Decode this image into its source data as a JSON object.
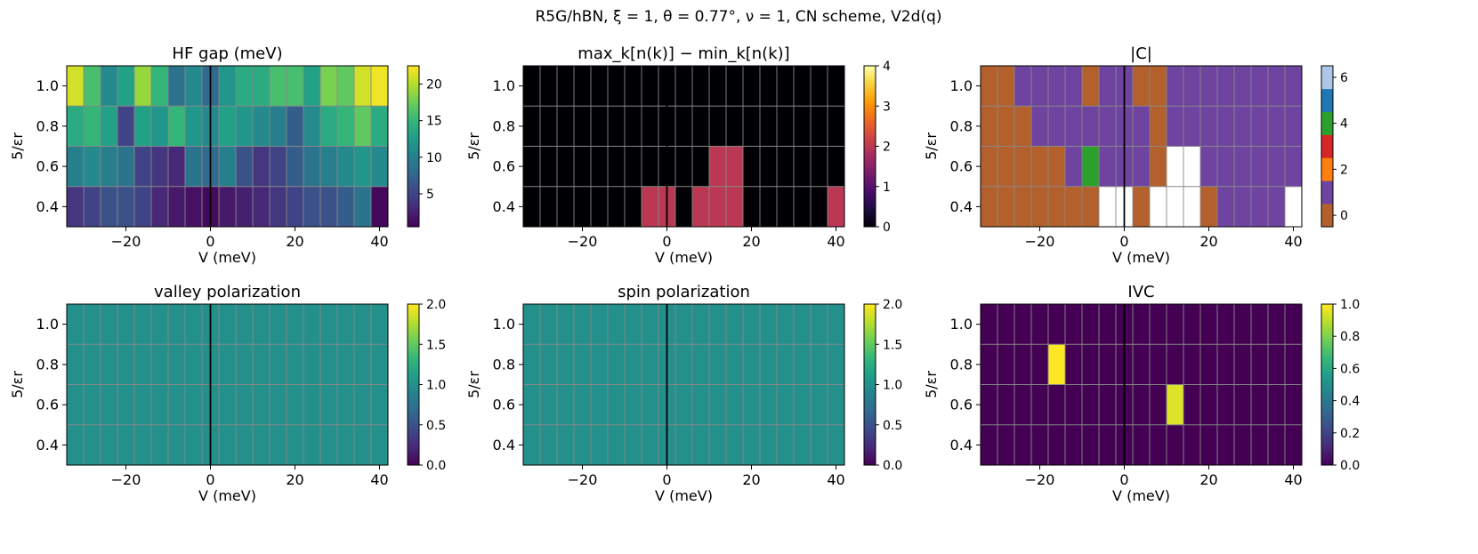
{
  "figure": {
    "suptitle": "R5G/hBN,  ξ = 1,  θ = 0.77°,  ν = 1,  CN scheme,  V2d(q)"
  },
  "chart_data": [
    {
      "type": "heatmap",
      "title": "HF gap (meV)",
      "xlabel": "V (meV)",
      "ylabel": "5/εr",
      "x": [
        -32,
        -28,
        -24,
        -20,
        -16,
        -12,
        -8,
        -4,
        0,
        4,
        8,
        12,
        16,
        20,
        24,
        28,
        32,
        36,
        40
      ],
      "y": [
        0.4,
        0.6,
        0.8,
        1.0
      ],
      "xlim": [
        -34,
        42
      ],
      "ylim": [
        0.3,
        1.1
      ],
      "xticks": [
        -20,
        0,
        20,
        40
      ],
      "yticks": [
        0.4,
        0.6,
        0.8,
        1.0
      ],
      "vline_x": 0,
      "colormap": "viridis",
      "color_range": [
        0.5,
        22.5
      ],
      "colorbar_ticks": [
        5,
        10,
        15,
        20
      ],
      "z": [
        [
          4,
          5,
          6,
          6,
          5,
          3,
          2,
          1.5,
          1,
          2,
          2.5,
          3,
          4,
          5,
          6,
          6,
          7,
          9,
          1
        ],
        [
          10,
          11,
          10,
          9,
          5,
          4,
          3,
          9,
          8,
          10,
          6,
          4,
          5,
          7,
          9,
          10,
          11,
          12,
          11
        ],
        [
          14,
          15,
          13,
          5,
          13,
          12,
          15,
          12,
          11,
          13,
          12,
          11,
          10,
          7,
          11,
          14,
          15,
          17,
          14
        ],
        [
          21,
          16,
          11,
          13,
          19,
          15,
          9,
          11,
          8,
          12,
          14,
          14,
          16,
          16,
          13,
          18,
          17,
          21,
          22
        ]
      ]
    },
    {
      "type": "heatmap",
      "title": "max_k[n(k)] − min_k[n(k)]",
      "xlabel": "V (meV)",
      "ylabel": "5/εr",
      "x": [
        -32,
        -28,
        -24,
        -20,
        -16,
        -12,
        -8,
        -4,
        0,
        4,
        8,
        12,
        16,
        20,
        24,
        28,
        32,
        36,
        40
      ],
      "y": [
        0.4,
        0.6,
        0.8,
        1.0
      ],
      "xlim": [
        -34,
        42
      ],
      "ylim": [
        0.3,
        1.1
      ],
      "xticks": [
        -20,
        0,
        20,
        40
      ],
      "yticks": [
        0.4,
        0.6,
        0.8,
        1.0
      ],
      "vline_x": 0,
      "colormap": "inferno",
      "color_range": [
        0,
        4
      ],
      "colorbar_ticks": [
        0,
        1,
        2,
        3,
        4
      ],
      "z": [
        [
          0,
          0,
          0,
          0,
          0,
          0,
          0,
          2,
          2,
          0,
          2,
          2,
          2,
          0,
          0,
          0,
          0,
          0,
          2
        ],
        [
          0,
          0,
          0,
          0,
          0,
          0,
          0,
          0,
          0,
          0,
          0,
          2,
          2,
          0,
          0,
          0,
          0,
          0,
          0
        ],
        [
          0,
          0,
          0,
          0,
          0,
          0,
          0,
          0,
          0,
          0,
          0,
          0,
          0,
          0,
          0,
          0,
          0,
          0,
          0
        ],
        [
          0,
          0,
          0,
          0,
          0,
          0,
          0,
          0,
          0,
          0,
          0,
          0,
          0,
          0,
          0,
          0,
          0,
          0,
          0
        ]
      ]
    },
    {
      "type": "heatmap",
      "title": "|C|",
      "xlabel": "V (meV)",
      "ylabel": "5/εr",
      "x": [
        -32,
        -28,
        -24,
        -20,
        -16,
        -12,
        -8,
        -4,
        0,
        4,
        8,
        12,
        16,
        20,
        24,
        28,
        32,
        36,
        40
      ],
      "y": [
        0.4,
        0.6,
        0.8,
        1.0
      ],
      "xlim": [
        -34,
        42
      ],
      "ylim": [
        0.3,
        1.1
      ],
      "xticks": [
        -20,
        0,
        20,
        40
      ],
      "yticks": [
        0.4,
        0.6,
        0.8,
        1.0
      ],
      "vline_x": 0,
      "colormap": "discrete",
      "discrete_colors": [
        "#b4602c",
        "#6e44a0",
        "#ff7f0e",
        "#d62728",
        "#2ca02c",
        "#1f77b4",
        "#aec7e8"
      ],
      "missing_color": "#ffffff",
      "color_range": [
        -0.5,
        6.5
      ],
      "colorbar_ticks": [
        0,
        2,
        4,
        6
      ],
      "z": [
        [
          0,
          0,
          0,
          0,
          0,
          0,
          0,
          null,
          null,
          0,
          null,
          null,
          null,
          0,
          1,
          1,
          1,
          1,
          null
        ],
        [
          0,
          0,
          0,
          0,
          0,
          1,
          4,
          1,
          1,
          1,
          0,
          null,
          null,
          1,
          1,
          1,
          1,
          1,
          1
        ],
        [
          0,
          0,
          0,
          1,
          1,
          1,
          1,
          1,
          1,
          1,
          0,
          1,
          1,
          1,
          1,
          1,
          1,
          1,
          1
        ],
        [
          0,
          0,
          1,
          1,
          1,
          1,
          0,
          1,
          1,
          0,
          0,
          1,
          1,
          1,
          1,
          1,
          1,
          1,
          1
        ]
      ]
    },
    {
      "type": "heatmap",
      "title": "valley polarization",
      "xlabel": "V (meV)",
      "ylabel": "5/εr",
      "x": [
        -32,
        -28,
        -24,
        -20,
        -16,
        -12,
        -8,
        -4,
        0,
        4,
        8,
        12,
        16,
        20,
        24,
        28,
        32,
        36,
        40
      ],
      "y": [
        0.4,
        0.6,
        0.8,
        1.0
      ],
      "xlim": [
        -34,
        42
      ],
      "ylim": [
        0.3,
        1.1
      ],
      "xticks": [
        -20,
        0,
        20,
        40
      ],
      "yticks": [
        0.4,
        0.6,
        0.8,
        1.0
      ],
      "vline_x": 0,
      "colormap": "viridis",
      "color_range": [
        0,
        2
      ],
      "colorbar_ticks": [
        0.0,
        0.5,
        1.0,
        1.5,
        2.0
      ],
      "z": [
        [
          1,
          1,
          1,
          1,
          1,
          1,
          1,
          1,
          1,
          1,
          1,
          1,
          1,
          1,
          1,
          1,
          1,
          1,
          1
        ],
        [
          1,
          1,
          1,
          1,
          1,
          1,
          1,
          1,
          1,
          1,
          1,
          1,
          1,
          1,
          1,
          1,
          1,
          1,
          1
        ],
        [
          1,
          1,
          1,
          1,
          1,
          1,
          1,
          1,
          1,
          1,
          1,
          1,
          1,
          1,
          1,
          1,
          1,
          1,
          1
        ],
        [
          1,
          1,
          1,
          1,
          1,
          1,
          1,
          1,
          1,
          1,
          1,
          1,
          1,
          1,
          1,
          1,
          1,
          1,
          1
        ]
      ]
    },
    {
      "type": "heatmap",
      "title": "spin polarization",
      "xlabel": "V (meV)",
      "ylabel": "5/εr",
      "x": [
        -32,
        -28,
        -24,
        -20,
        -16,
        -12,
        -8,
        -4,
        0,
        4,
        8,
        12,
        16,
        20,
        24,
        28,
        32,
        36,
        40
      ],
      "y": [
        0.4,
        0.6,
        0.8,
        1.0
      ],
      "xlim": [
        -34,
        42
      ],
      "ylim": [
        0.3,
        1.1
      ],
      "xticks": [
        -20,
        0,
        20,
        40
      ],
      "yticks": [
        0.4,
        0.6,
        0.8,
        1.0
      ],
      "vline_x": 0,
      "colormap": "viridis",
      "color_range": [
        0,
        2
      ],
      "colorbar_ticks": [
        0.0,
        0.5,
        1.0,
        1.5,
        2.0
      ],
      "z": [
        [
          1,
          1,
          1,
          1,
          1,
          1,
          1,
          1,
          1,
          1,
          1,
          1,
          1,
          1,
          1,
          1,
          1,
          1,
          1
        ],
        [
          1,
          1,
          1,
          1,
          1,
          1,
          1,
          1,
          1,
          1,
          1,
          1,
          1,
          1,
          1,
          1,
          1,
          1,
          1
        ],
        [
          1,
          1,
          1,
          1,
          1,
          1,
          1,
          1,
          1,
          1,
          1,
          1,
          1,
          1,
          1,
          1,
          1,
          1,
          1
        ],
        [
          1,
          1,
          1,
          1,
          1,
          1,
          1,
          1,
          1,
          1,
          1,
          1,
          1,
          1,
          1,
          1,
          1,
          1,
          1
        ]
      ]
    },
    {
      "type": "heatmap",
      "title": "IVC",
      "xlabel": "V (meV)",
      "ylabel": "5/εr",
      "x": [
        -32,
        -28,
        -24,
        -20,
        -16,
        -12,
        -8,
        -4,
        0,
        4,
        8,
        12,
        16,
        20,
        24,
        28,
        32,
        36,
        40
      ],
      "y": [
        0.4,
        0.6,
        0.8,
        1.0
      ],
      "xlim": [
        -34,
        42
      ],
      "ylim": [
        0.3,
        1.1
      ],
      "xticks": [
        -20,
        0,
        20,
        40
      ],
      "yticks": [
        0.4,
        0.6,
        0.8,
        1.0
      ],
      "vline_x": 0,
      "colormap": "viridis",
      "color_range": [
        0,
        1
      ],
      "colorbar_ticks": [
        0.0,
        0.2,
        0.4,
        0.6,
        0.8,
        1.0
      ],
      "z": [
        [
          0,
          0,
          0,
          0,
          0,
          0,
          0,
          0,
          0,
          0,
          0,
          0,
          0,
          0,
          0,
          0,
          0,
          0,
          0
        ],
        [
          0,
          0,
          0,
          0,
          0,
          0,
          0,
          0,
          0,
          0,
          0,
          0.95,
          0,
          0,
          0,
          0,
          0,
          0,
          0
        ],
        [
          0,
          0,
          0,
          0,
          1.0,
          0,
          0,
          0,
          0,
          0,
          0,
          0,
          0,
          0,
          0,
          0,
          0,
          0,
          0
        ],
        [
          0,
          0,
          0,
          0,
          0,
          0,
          0,
          0,
          0,
          0,
          0,
          0,
          0,
          0,
          0,
          0,
          0,
          0,
          0
        ]
      ]
    }
  ]
}
